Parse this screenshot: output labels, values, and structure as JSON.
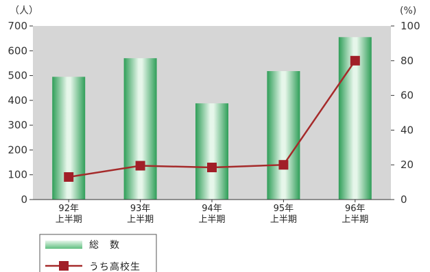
{
  "chart_data": {
    "type": "bar",
    "categories": [
      [
        "92年",
        "上半期"
      ],
      [
        "93年",
        "上半期"
      ],
      [
        "94年",
        "上半期"
      ],
      [
        "95年",
        "上半期"
      ],
      [
        "96年",
        "上半期"
      ]
    ],
    "series": [
      {
        "name": "総　数",
        "type": "bar",
        "axis": "left",
        "values": [
          495,
          570,
          388,
          518,
          655
        ]
      },
      {
        "name": "うち高校生",
        "type": "line",
        "axis": "right",
        "values": [
          13,
          19.5,
          18.5,
          20,
          80
        ]
      }
    ],
    "left_axis": {
      "unit": "（人）",
      "ylim": [
        0,
        700
      ],
      "ticks": [
        0,
        100,
        200,
        300,
        400,
        500,
        600,
        700
      ]
    },
    "right_axis": {
      "unit": "(%)",
      "ylim": [
        0,
        100
      ],
      "ticks": [
        0,
        20,
        40,
        60,
        80,
        100
      ]
    },
    "legend_position": "bottom-left",
    "colors": {
      "plot_background": "#d6d6d6",
      "bar_dark": "#2f9e58",
      "bar_light": "#e6f6ea",
      "line": "#a52a2a",
      "marker": "#a11f28"
    }
  }
}
